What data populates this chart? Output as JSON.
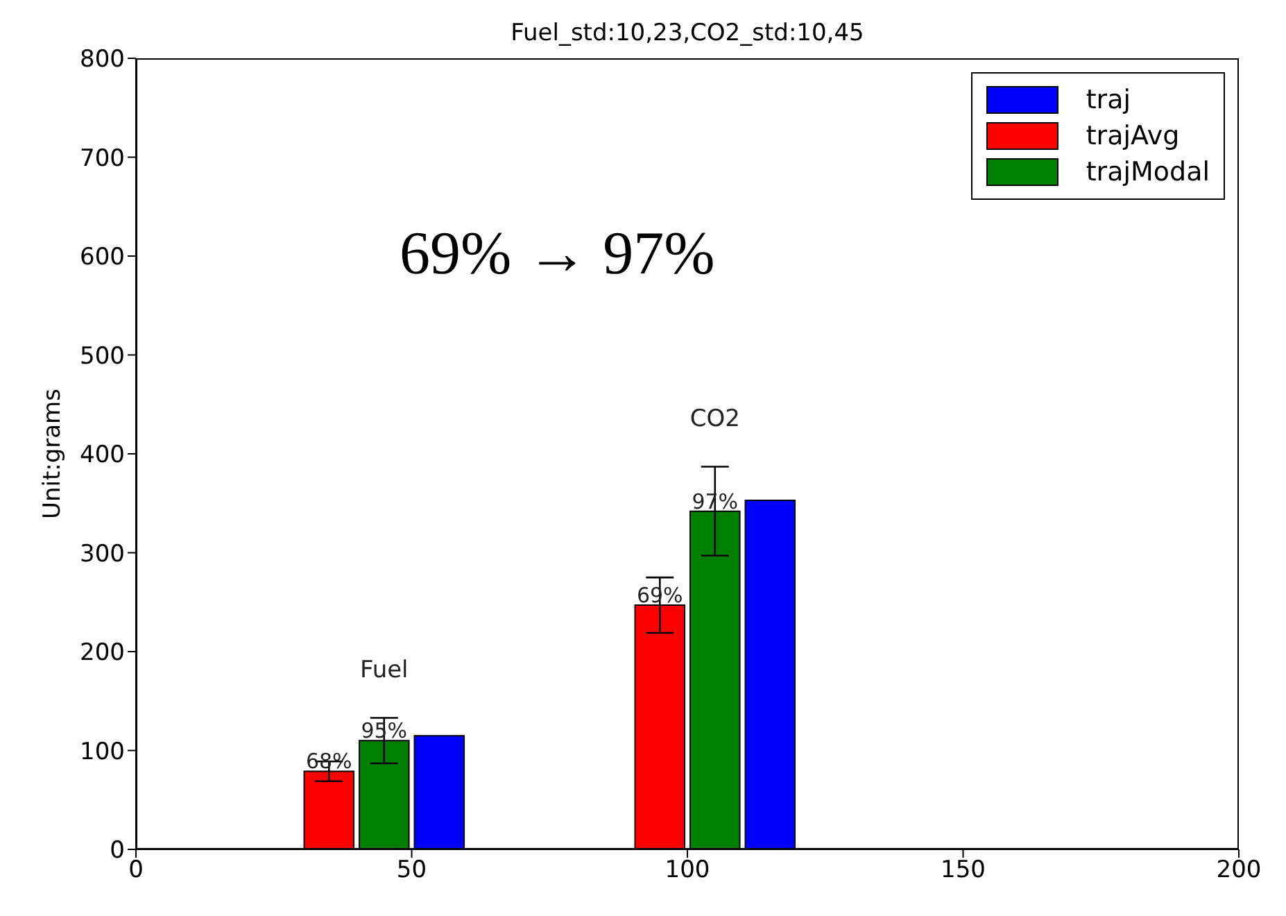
{
  "chart_data": {
    "type": "bar",
    "title": "Fuel_std:10,23,CO2_std:10,45",
    "ylabel": "Unit:grams",
    "xlim": [
      0,
      200
    ],
    "xticks": [
      0,
      50,
      100,
      150,
      200
    ],
    "ylim": [
      0,
      800
    ],
    "yticks": [
      0,
      100,
      200,
      300,
      400,
      500,
      600,
      700,
      800
    ],
    "series": [
      {
        "name": "traj",
        "color": "#0000ff",
        "x": [
          55,
          115
        ],
        "values": [
          115,
          353
        ]
      },
      {
        "name": "trajAvg",
        "color": "#ff0000",
        "x": [
          35,
          95
        ],
        "values": [
          79,
          247
        ],
        "errors": [
          10,
          28
        ]
      },
      {
        "name": "trajModal",
        "color": "#007f00",
        "x": [
          45,
          105
        ],
        "values": [
          110,
          342
        ],
        "errors": [
          23,
          45
        ]
      }
    ],
    "annotations": [
      "Fuel",
      "CO2",
      "69% → 97%",
      {
        "text": "68%",
        "x": 35,
        "y": 79
      },
      {
        "text": "69%",
        "x": 95,
        "y": 247
      },
      {
        "text": "95%",
        "x": 45,
        "y": 110
      },
      {
        "text": "97%",
        "x": 105,
        "y": 342
      }
    ],
    "legend": "top right",
    "grid": false
  }
}
